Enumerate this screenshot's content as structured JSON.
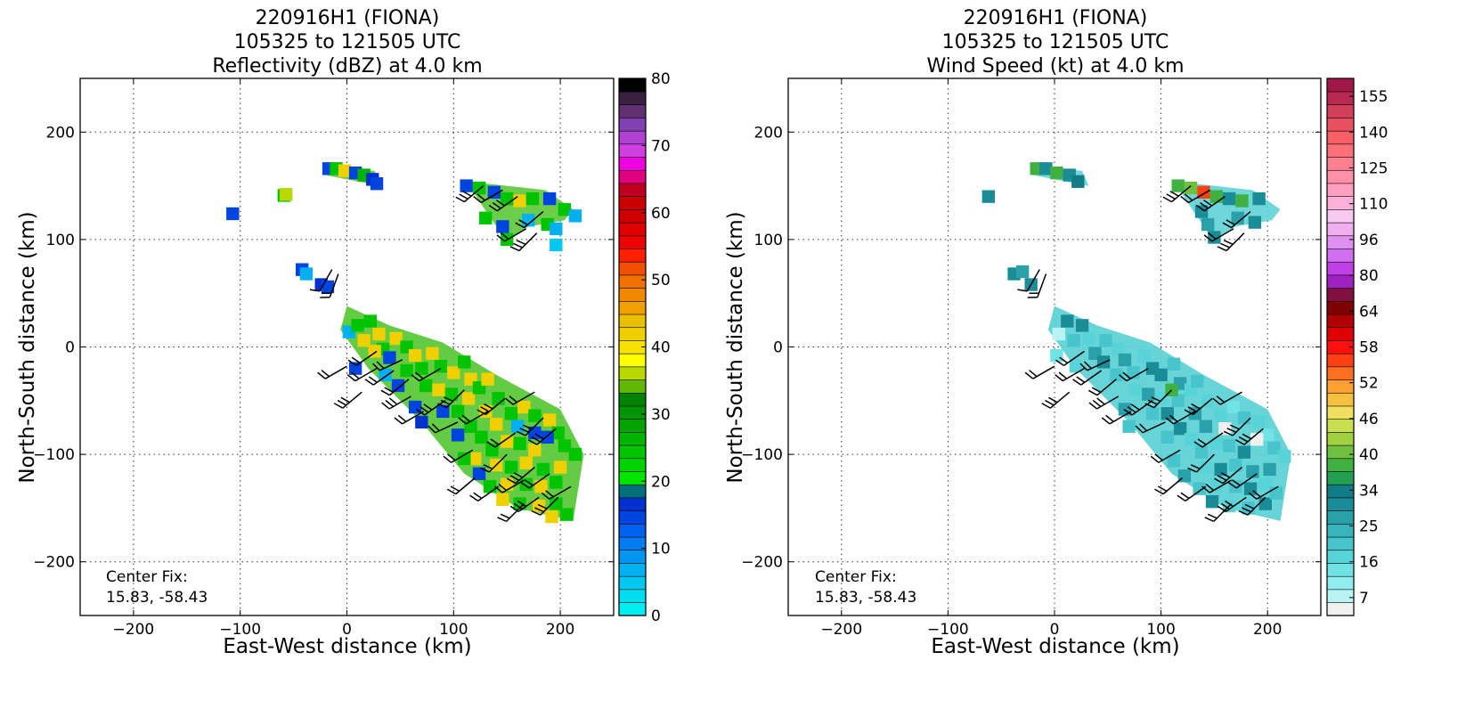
{
  "chart_data": [
    {
      "type": "heatmap",
      "title_lines": [
        "220916H1 (FIONA)",
        "105325 to 121505 UTC",
        "Reflectivity (dBZ) at 4.0 km"
      ],
      "xlabel": "East-West distance (km)",
      "ylabel": "North-South distance (km)",
      "xlim": [
        -250,
        250
      ],
      "ylim": [
        -250,
        250
      ],
      "xticks": [
        -200,
        -100,
        0,
        100,
        200
      ],
      "yticks": [
        -200,
        -100,
        0,
        100,
        200
      ],
      "grid": true,
      "annotation": [
        "Center Fix:",
        "15.83, -58.43"
      ],
      "colorbar": {
        "min": 0,
        "max": 80,
        "tick_labels": [
          "0",
          "10",
          "20",
          "30",
          "40",
          "50",
          "60",
          "70",
          "80"
        ],
        "colors": [
          "#00eeee",
          "#00ddee",
          "#00c8f0",
          "#00b0f0",
          "#0096f0",
          "#007df0",
          "#0060f0",
          "#0044e0",
          "#0030d0",
          "#006f7a",
          "#00e400",
          "#00d400",
          "#00c400",
          "#00b400",
          "#00a400",
          "#009400",
          "#008400",
          "#60b800",
          "#b8d800",
          "#ffff00",
          "#f8e000",
          "#f0d000",
          "#e8c000",
          "#f0a000",
          "#f08800",
          "#f07000",
          "#f05000",
          "#ff2000",
          "#f00000",
          "#e00000",
          "#d00000",
          "#c80000",
          "#c00020",
          "#e00080",
          "#f000e0",
          "#d040e0",
          "#b040d0",
          "#8040b0",
          "#603070",
          "#382040",
          "#000000"
        ]
      },
      "cells": [
        [
          -107,
          124,
          "#0044e0"
        ],
        [
          -59,
          141,
          "#00c400"
        ],
        [
          -57,
          142,
          "#b8d800"
        ],
        [
          -17,
          166,
          "#0044e0"
        ],
        [
          -10,
          166,
          "#00c400"
        ],
        [
          -2,
          164,
          "#f0d000"
        ],
        [
          8,
          162,
          "#0044e0"
        ],
        [
          16,
          160,
          "#00b400"
        ],
        [
          24,
          156,
          "#0030d0"
        ],
        [
          28,
          152,
          "#0044e0"
        ],
        [
          -42,
          72,
          "#0044e0"
        ],
        [
          -38,
          68,
          "#00b0f0"
        ],
        [
          -24,
          58,
          "#0030d0"
        ],
        [
          -18,
          56,
          "#0044e0"
        ],
        [
          112,
          150,
          "#0044e0"
        ],
        [
          124,
          148,
          "#00c400"
        ],
        [
          138,
          144,
          "#0044e0"
        ],
        [
          150,
          138,
          "#00c400"
        ],
        [
          162,
          136,
          "#f0d000"
        ],
        [
          174,
          138,
          "#00c400"
        ],
        [
          190,
          138,
          "#0044e0"
        ],
        [
          204,
          128,
          "#00c400"
        ],
        [
          214,
          122,
          "#00b0f0"
        ],
        [
          130,
          120,
          "#00c400"
        ],
        [
          146,
          112,
          "#0044e0"
        ],
        [
          150,
          100,
          "#00c400"
        ],
        [
          170,
          118,
          "#00b0f0"
        ],
        [
          188,
          114,
          "#00c400"
        ],
        [
          196,
          110,
          "#00b0f0"
        ],
        [
          196,
          95,
          "#00c8f0"
        ],
        [
          2,
          14,
          "#00b0f0"
        ],
        [
          10,
          20,
          "#00c400"
        ],
        [
          16,
          6,
          "#f0d000"
        ],
        [
          22,
          24,
          "#00c400"
        ],
        [
          30,
          12,
          "#f0d000"
        ],
        [
          34,
          -2,
          "#00c400"
        ],
        [
          26,
          -4,
          "#f0d000"
        ],
        [
          46,
          8,
          "#f0d000"
        ],
        [
          40,
          -10,
          "#0044e0"
        ],
        [
          56,
          0,
          "#00c400"
        ],
        [
          64,
          -8,
          "#f0d000"
        ],
        [
          70,
          -20,
          "#00c400"
        ],
        [
          80,
          -6,
          "#f0d000"
        ],
        [
          88,
          -18,
          "#00c400"
        ],
        [
          56,
          -22,
          "#00c400"
        ],
        [
          74,
          -36,
          "#00c400"
        ],
        [
          86,
          -40,
          "#f0d000"
        ],
        [
          100,
          -24,
          "#f0d000"
        ],
        [
          110,
          -14,
          "#00c400"
        ],
        [
          116,
          -30,
          "#f0d000"
        ],
        [
          98,
          -44,
          "#00c400"
        ],
        [
          90,
          -60,
          "#0044e0"
        ],
        [
          104,
          -60,
          "#00c400"
        ],
        [
          114,
          -48,
          "#f0d000"
        ],
        [
          124,
          -38,
          "#00c400"
        ],
        [
          132,
          -30,
          "#f0d000"
        ],
        [
          142,
          -48,
          "#00c400"
        ],
        [
          130,
          -60,
          "#f0d000"
        ],
        [
          116,
          -74,
          "#00c400"
        ],
        [
          104,
          -82,
          "#0044e0"
        ],
        [
          126,
          -84,
          "#00c400"
        ],
        [
          140,
          -72,
          "#f0d000"
        ],
        [
          154,
          -62,
          "#00c400"
        ],
        [
          166,
          -56,
          "#f0d000"
        ],
        [
          176,
          -64,
          "#00c400"
        ],
        [
          190,
          -68,
          "#f0d000"
        ],
        [
          198,
          -80,
          "#00c400"
        ],
        [
          188,
          -84,
          "#0044e0"
        ],
        [
          204,
          -92,
          "#00c400"
        ],
        [
          214,
          -100,
          "#00c400"
        ],
        [
          200,
          -112,
          "#f0d000"
        ],
        [
          176,
          -96,
          "#f0d000"
        ],
        [
          162,
          -90,
          "#00c400"
        ],
        [
          150,
          -88,
          "#f0d000"
        ],
        [
          136,
          -96,
          "#00c400"
        ],
        [
          140,
          -110,
          "#f0d000"
        ],
        [
          154,
          -112,
          "#00c400"
        ],
        [
          168,
          -108,
          "#f0d000"
        ],
        [
          184,
          -114,
          "#00c400"
        ],
        [
          196,
          -126,
          "#00c400"
        ],
        [
          182,
          -130,
          "#f0d000"
        ],
        [
          168,
          -128,
          "#00c400"
        ],
        [
          150,
          -128,
          "#f0d000"
        ],
        [
          134,
          -130,
          "#00c400"
        ],
        [
          146,
          -142,
          "#f0d000"
        ],
        [
          162,
          -146,
          "#00c400"
        ],
        [
          180,
          -148,
          "#f0d000"
        ],
        [
          196,
          -146,
          "#00c400"
        ],
        [
          206,
          -156,
          "#00c400"
        ],
        [
          192,
          -158,
          "#f0d000"
        ],
        [
          124,
          -118,
          "#0044e0"
        ],
        [
          120,
          -104,
          "#f0d000"
        ],
        [
          110,
          -104,
          "#00c400"
        ],
        [
          160,
          -74,
          "#00b0f0"
        ],
        [
          176,
          -80,
          "#0044e0"
        ],
        [
          64,
          -56,
          "#0044e0"
        ],
        [
          70,
          -70,
          "#0030d0"
        ],
        [
          48,
          -36,
          "#0044e0"
        ],
        [
          36,
          -26,
          "#00b0f0"
        ],
        [
          8,
          -20,
          "#0044e0"
        ]
      ]
    },
    {
      "type": "heatmap",
      "title_lines": [
        "220916H1 (FIONA)",
        "105325 to 121505 UTC",
        "Wind Speed (kt) at 4.0 km"
      ],
      "xlabel": "East-West distance (km)",
      "ylabel": "North-South distance (km)",
      "xlim": [
        -250,
        250
      ],
      "ylim": [
        -250,
        250
      ],
      "xticks": [
        -200,
        -100,
        0,
        100,
        200
      ],
      "yticks": [
        -200,
        -100,
        0,
        100,
        200
      ],
      "grid": true,
      "annotation": [
        "Center Fix:",
        "15.83, -58.43"
      ],
      "colorbar": {
        "tick_labels": [
          "7",
          "16",
          "25",
          "34",
          "40",
          "46",
          "52",
          "58",
          "64",
          "80",
          "96",
          "110",
          "125",
          "140",
          "155"
        ],
        "colors": [
          "#f0f0f0",
          "#b8f4f4",
          "#90eeee",
          "#70e4e4",
          "#58d4d8",
          "#48c4cc",
          "#38b4bc",
          "#2aa0aa",
          "#1a8c98",
          "#107c88",
          "#20a050",
          "#40b040",
          "#70c040",
          "#a0d040",
          "#c8e050",
          "#f0e060",
          "#f8c040",
          "#ffa030",
          "#ff7020",
          "#ff4010",
          "#ff1010",
          "#e00000",
          "#b00000",
          "#800000",
          "#801040",
          "#a020c0",
          "#c040e8",
          "#d070f0",
          "#e090f0",
          "#f0b0f0",
          "#f8c8f0",
          "#ffb0d8",
          "#ffa0c0",
          "#ff90a8",
          "#ff8090",
          "#ff7078",
          "#f86068",
          "#e85060",
          "#d04058",
          "#b82850",
          "#a01848"
        ]
      },
      "cells": [
        [
          -62,
          140,
          "#1a8c98"
        ],
        [
          -17,
          166,
          "#40b040"
        ],
        [
          -8,
          166,
          "#1a8c98"
        ],
        [
          2,
          162,
          "#40b040"
        ],
        [
          14,
          160,
          "#1a8c98"
        ],
        [
          22,
          154,
          "#107c88"
        ],
        [
          -38,
          68,
          "#1a8c98"
        ],
        [
          -30,
          70,
          "#2aa0aa"
        ],
        [
          -22,
          58,
          "#1a8c98"
        ],
        [
          116,
          150,
          "#40b040"
        ],
        [
          128,
          148,
          "#70c040"
        ],
        [
          140,
          144,
          "#ff4010"
        ],
        [
          152,
          140,
          "#40b040"
        ],
        [
          164,
          138,
          "#1a8c98"
        ],
        [
          176,
          136,
          "#40b040"
        ],
        [
          192,
          138,
          "#1a8c98"
        ],
        [
          138,
          126,
          "#1a8c98"
        ],
        [
          144,
          114,
          "#2aa0aa"
        ],
        [
          150,
          102,
          "#1a8c98"
        ],
        [
          172,
          120,
          "#2aa0aa"
        ],
        [
          188,
          116,
          "#1a8c98"
        ],
        [
          4,
          12,
          "#b8f4f4"
        ],
        [
          12,
          24,
          "#1a8c98"
        ],
        [
          18,
          6,
          "#48c4cc"
        ],
        [
          26,
          20,
          "#1a8c98"
        ],
        [
          32,
          8,
          "#58d4d8"
        ],
        [
          38,
          -6,
          "#2aa0aa"
        ],
        [
          48,
          6,
          "#48c4cc"
        ],
        [
          46,
          -14,
          "#1a8c98"
        ],
        [
          60,
          -2,
          "#58d4d8"
        ],
        [
          66,
          -12,
          "#2aa0aa"
        ],
        [
          74,
          -24,
          "#48c4cc"
        ],
        [
          84,
          -8,
          "#58d4d8"
        ],
        [
          92,
          -20,
          "#1a8c98"
        ],
        [
          58,
          -26,
          "#48c4cc"
        ],
        [
          76,
          -40,
          "#58d4d8"
        ],
        [
          88,
          -44,
          "#2aa0aa"
        ],
        [
          100,
          -26,
          "#1a8c98"
        ],
        [
          112,
          -16,
          "#48c4cc"
        ],
        [
          118,
          -34,
          "#2aa0aa"
        ],
        [
          100,
          -48,
          "#58d4d8"
        ],
        [
          92,
          -62,
          "#48c4cc"
        ],
        [
          106,
          -62,
          "#1a8c98"
        ],
        [
          116,
          -50,
          "#48c4cc"
        ],
        [
          128,
          -40,
          "#58d4d8"
        ],
        [
          134,
          -32,
          "#48c4cc"
        ],
        [
          144,
          -50,
          "#58d4d8"
        ],
        [
          132,
          -62,
          "#2aa0aa"
        ],
        [
          118,
          -76,
          "#1a8c98"
        ],
        [
          106,
          -84,
          "#48c4cc"
        ],
        [
          128,
          -86,
          "#58d4d8"
        ],
        [
          142,
          -74,
          "#2aa0aa"
        ],
        [
          156,
          -64,
          "#58d4d8"
        ],
        [
          168,
          -56,
          "#70e4e4"
        ],
        [
          178,
          -66,
          "#48c4cc"
        ],
        [
          192,
          -70,
          "#58d4d8"
        ],
        [
          200,
          -82,
          "#70e4e4"
        ],
        [
          190,
          -86,
          "#f0f0f0"
        ],
        [
          206,
          -94,
          "#48c4cc"
        ],
        [
          216,
          -102,
          "#58d4d8"
        ],
        [
          202,
          -114,
          "#2aa0aa"
        ],
        [
          178,
          -98,
          "#1a8c98"
        ],
        [
          164,
          -92,
          "#48c4cc"
        ],
        [
          152,
          -90,
          "#58d4d8"
        ],
        [
          138,
          -98,
          "#48c4cc"
        ],
        [
          142,
          -112,
          "#58d4d8"
        ],
        [
          156,
          -114,
          "#1a8c98"
        ],
        [
          170,
          -110,
          "#48c4cc"
        ],
        [
          186,
          -116,
          "#2aa0aa"
        ],
        [
          198,
          -128,
          "#58d4d8"
        ],
        [
          184,
          -132,
          "#1a8c98"
        ],
        [
          170,
          -130,
          "#48c4cc"
        ],
        [
          152,
          -130,
          "#58d4d8"
        ],
        [
          136,
          -132,
          "#48c4cc"
        ],
        [
          148,
          -144,
          "#1a8c98"
        ],
        [
          164,
          -148,
          "#58d4d8"
        ],
        [
          182,
          -150,
          "#48c4cc"
        ],
        [
          198,
          -146,
          "#1a8c98"
        ],
        [
          208,
          -136,
          "#48c4cc"
        ],
        [
          122,
          -120,
          "#2aa0aa"
        ],
        [
          112,
          -106,
          "#48c4cc"
        ],
        [
          160,
          -76,
          "#f0f0f0"
        ],
        [
          66,
          -58,
          "#2aa0aa"
        ],
        [
          70,
          -74,
          "#48c4cc"
        ],
        [
          110,
          -40,
          "#40b040"
        ],
        [
          20,
          -18,
          "#58d4d8"
        ],
        [
          2,
          -8,
          "#70e4e4"
        ]
      ]
    }
  ]
}
